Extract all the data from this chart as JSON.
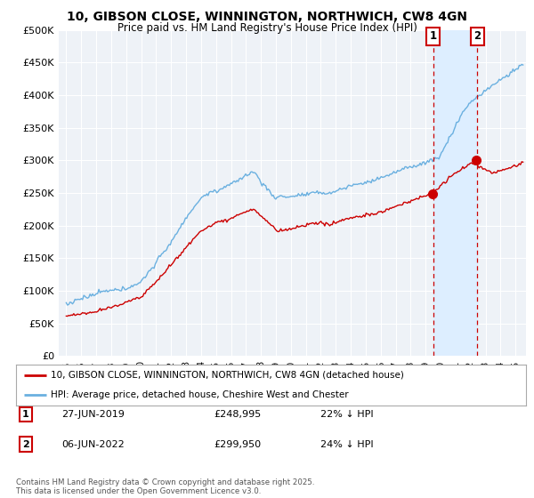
{
  "title_line1": "10, GIBSON CLOSE, WINNINGTON, NORTHWICH, CW8 4GN",
  "title_line2": "Price paid vs. HM Land Registry's House Price Index (HPI)",
  "ylabel_ticks": [
    "£0",
    "£50K",
    "£100K",
    "£150K",
    "£200K",
    "£250K",
    "£300K",
    "£350K",
    "£400K",
    "£450K",
    "£500K"
  ],
  "ytick_values": [
    0,
    50000,
    100000,
    150000,
    200000,
    250000,
    300000,
    350000,
    400000,
    450000,
    500000
  ],
  "xlim_start": 1994.5,
  "xlim_end": 2025.7,
  "ylim_min": 0,
  "ylim_max": 500000,
  "hpi_color": "#6ab0e0",
  "price_color": "#cc0000",
  "marker1_x": 2019.49,
  "marker2_x": 2022.44,
  "vline_color": "#cc0000",
  "shade_color": "#ddeeff",
  "legend_line1": "10, GIBSON CLOSE, WINNINGTON, NORTHWICH, CW8 4GN (detached house)",
  "legend_line2": "HPI: Average price, detached house, Cheshire West and Chester",
  "table_row1": [
    "1",
    "27-JUN-2019",
    "£248,995",
    "22% ↓ HPI"
  ],
  "table_row2": [
    "2",
    "06-JUN-2022",
    "£299,950",
    "24% ↓ HPI"
  ],
  "footnote": "Contains HM Land Registry data © Crown copyright and database right 2025.\nThis data is licensed under the Open Government Licence v3.0.",
  "bg_color": "#ffffff",
  "plot_bg_color": "#eef2f7",
  "grid_color": "#ffffff"
}
